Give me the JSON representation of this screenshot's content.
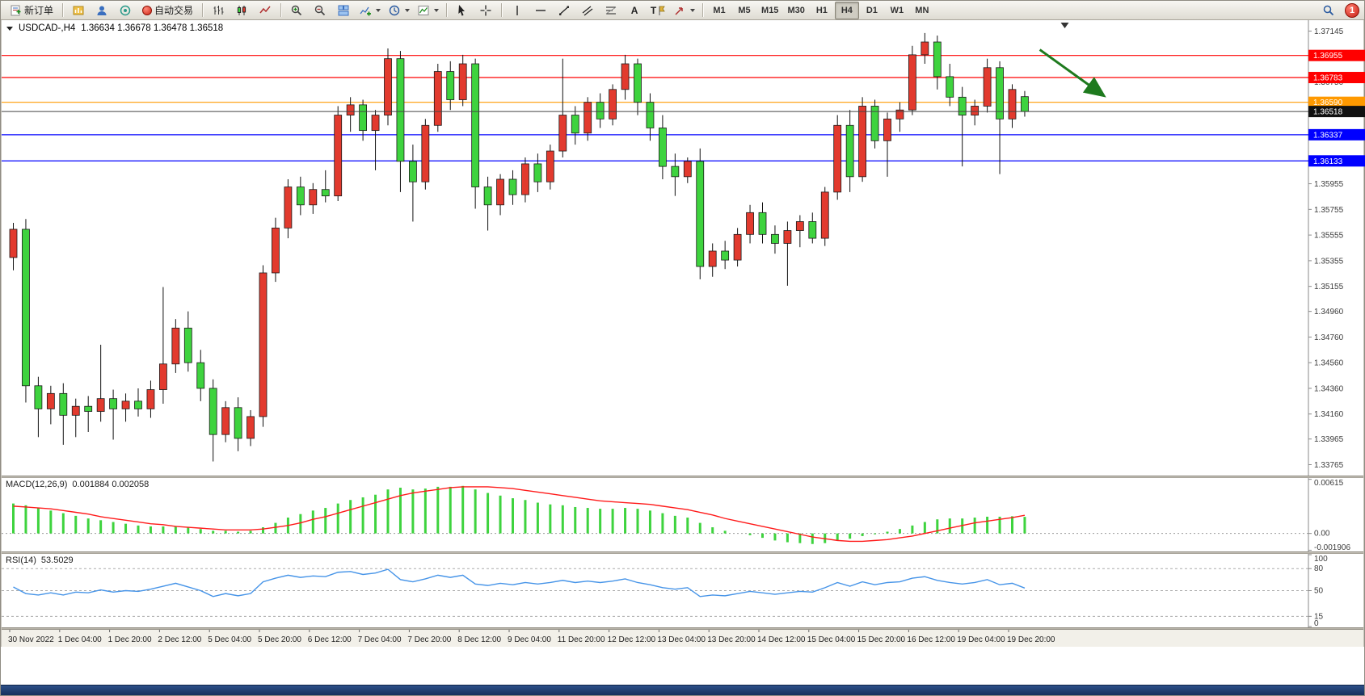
{
  "toolbar": {
    "new_order": "新订单",
    "auto_trading": "自动交易",
    "timeframes": [
      "M1",
      "M5",
      "M15",
      "M30",
      "H1",
      "H4",
      "D1",
      "W1",
      "MN"
    ],
    "active_timeframe": "H4",
    "badge": "1"
  },
  "icons": {
    "text_tool": "A",
    "label_tool": "T"
  },
  "chart_header": {
    "symbol_period": "USDCAD-,H4",
    "quote": "1.36634 1.36678 1.36478 1.36518"
  },
  "colors": {
    "up": "#e23a2e",
    "down": "#3ed33e",
    "wick": "#111111",
    "macd_hist": "#3ed33e",
    "macd_signal": "#ff1a1a",
    "rsi_line": "#4694e8",
    "arrow": "#1e7a1e",
    "axis_text": "#3c3c3c"
  },
  "chart_data": {
    "type": "candlestick",
    "symbol": "USDCAD",
    "period": "H4",
    "last_ohlc": {
      "open": 1.36634,
      "high": 1.36678,
      "low": 1.36478,
      "close": 1.36518
    },
    "price_range": [
      1.3368,
      1.3723
    ],
    "price_ticks": [
      "1.37145",
      "1.36945",
      "1.36750",
      "1.36550",
      "1.36350",
      "1.36155",
      "1.35955",
      "1.35755",
      "1.35555",
      "1.35355",
      "1.35155",
      "1.34960",
      "1.34760",
      "1.34560",
      "1.34360",
      "1.34160",
      "1.33965",
      "1.33765"
    ],
    "hlines": [
      {
        "value": 1.36955,
        "label": "1.36955",
        "color": "#ff0000"
      },
      {
        "value": 1.36783,
        "label": "1.36783",
        "color": "#ff0000"
      },
      {
        "value": 1.3659,
        "label": "1.36590",
        "color": "#ff9900"
      },
      {
        "value": 1.36337,
        "label": "1.36337",
        "color": "#0000ff"
      },
      {
        "value": 1.36133,
        "label": "1.36133",
        "color": "#0000ff"
      }
    ],
    "current_price": {
      "value": 1.36518,
      "label": "1.36518",
      "color": "#111111"
    },
    "arrow": {
      "from_index": 82.5,
      "from_price": 1.37,
      "to_index": 87.5,
      "to_price": 1.3665
    },
    "shift_marker_index": 84.5,
    "time_labels": [
      "30 Nov 2022",
      "1 Dec 04:00",
      "1 Dec 20:00",
      "2 Dec 12:00",
      "5 Dec 04:00",
      "5 Dec 20:00",
      "6 Dec 12:00",
      "7 Dec 04:00",
      "7 Dec 20:00",
      "8 Dec 12:00",
      "9 Dec 04:00",
      "11 Dec 20:00",
      "12 Dec 12:00",
      "13 Dec 04:00",
      "13 Dec 20:00",
      "14 Dec 12:00",
      "15 Dec 04:00",
      "15 Dec 20:00",
      "16 Dec 12:00",
      "19 Dec 04:00",
      "19 Dec 20:00"
    ],
    "candles": [
      [
        1.3538,
        1.3565,
        1.3528,
        1.356
      ],
      [
        1.356,
        1.3568,
        1.3425,
        1.3438
      ],
      [
        1.3438,
        1.3445,
        1.3398,
        1.342
      ],
      [
        1.342,
        1.3438,
        1.3408,
        1.3432
      ],
      [
        1.3432,
        1.344,
        1.3392,
        1.3415
      ],
      [
        1.3415,
        1.3428,
        1.3398,
        1.3422
      ],
      [
        1.3422,
        1.343,
        1.3402,
        1.3418
      ],
      [
        1.3418,
        1.347,
        1.341,
        1.3428
      ],
      [
        1.3428,
        1.3435,
        1.3396,
        1.342
      ],
      [
        1.342,
        1.3432,
        1.341,
        1.3426
      ],
      [
        1.3426,
        1.3436,
        1.3414,
        1.342
      ],
      [
        1.342,
        1.3442,
        1.3413,
        1.3435
      ],
      [
        1.3435,
        1.3515,
        1.3424,
        1.3455
      ],
      [
        1.3455,
        1.349,
        1.3448,
        1.3483
      ],
      [
        1.3483,
        1.3496,
        1.3449,
        1.3456
      ],
      [
        1.3456,
        1.3466,
        1.3426,
        1.3436
      ],
      [
        1.3436,
        1.3443,
        1.3379,
        1.34
      ],
      [
        1.34,
        1.3426,
        1.3394,
        1.3421
      ],
      [
        1.3421,
        1.3429,
        1.3387,
        1.3397
      ],
      [
        1.3397,
        1.3419,
        1.3391,
        1.3414
      ],
      [
        1.3414,
        1.3532,
        1.3406,
        1.3526
      ],
      [
        1.3526,
        1.3569,
        1.3519,
        1.3561
      ],
      [
        1.3561,
        1.3599,
        1.3553,
        1.3593
      ],
      [
        1.3593,
        1.3601,
        1.3571,
        1.3579
      ],
      [
        1.3579,
        1.3596,
        1.3572,
        1.3591
      ],
      [
        1.3591,
        1.3606,
        1.3581,
        1.3586
      ],
      [
        1.3586,
        1.3656,
        1.3582,
        1.3649
      ],
      [
        1.3649,
        1.3663,
        1.3636,
        1.3657
      ],
      [
        1.3657,
        1.3661,
        1.3629,
        1.3637
      ],
      [
        1.3637,
        1.3653,
        1.3606,
        1.3649
      ],
      [
        1.3649,
        1.3701,
        1.3641,
        1.3693
      ],
      [
        1.3693,
        1.3699,
        1.3589,
        1.3613
      ],
      [
        1.3613,
        1.3626,
        1.3566,
        1.3597
      ],
      [
        1.3597,
        1.3646,
        1.3591,
        1.3641
      ],
      [
        1.3641,
        1.3689,
        1.3636,
        1.3683
      ],
      [
        1.3683,
        1.3691,
        1.3653,
        1.3661
      ],
      [
        1.3661,
        1.3696,
        1.3656,
        1.3689
      ],
      [
        1.3689,
        1.3693,
        1.3576,
        1.3593
      ],
      [
        1.3593,
        1.3601,
        1.3559,
        1.3579
      ],
      [
        1.3579,
        1.3603,
        1.3571,
        1.3599
      ],
      [
        1.3599,
        1.3606,
        1.3579,
        1.3587
      ],
      [
        1.3587,
        1.3616,
        1.3581,
        1.3611
      ],
      [
        1.3611,
        1.3619,
        1.3589,
        1.3597
      ],
      [
        1.3597,
        1.3626,
        1.3591,
        1.3621
      ],
      [
        1.3621,
        1.3693,
        1.3616,
        1.3649
      ],
      [
        1.3649,
        1.3656,
        1.3626,
        1.3635
      ],
      [
        1.3635,
        1.3663,
        1.3629,
        1.3659
      ],
      [
        1.3659,
        1.3666,
        1.3639,
        1.3646
      ],
      [
        1.3646,
        1.3673,
        1.3641,
        1.3669
      ],
      [
        1.3669,
        1.3696,
        1.3661,
        1.3689
      ],
      [
        1.3689,
        1.3693,
        1.3649,
        1.3659
      ],
      [
        1.3659,
        1.3666,
        1.3629,
        1.3639
      ],
      [
        1.3639,
        1.3649,
        1.3599,
        1.3609
      ],
      [
        1.3609,
        1.3619,
        1.3586,
        1.3601
      ],
      [
        1.3601,
        1.3616,
        1.3596,
        1.3613
      ],
      [
        1.3613,
        1.3623,
        1.3521,
        1.3531
      ],
      [
        1.3531,
        1.3549,
        1.3523,
        1.3543
      ],
      [
        1.3543,
        1.3551,
        1.3529,
        1.3536
      ],
      [
        1.3536,
        1.3561,
        1.3531,
        1.3556
      ],
      [
        1.3556,
        1.3579,
        1.3549,
        1.3573
      ],
      [
        1.3573,
        1.3581,
        1.3549,
        1.3556
      ],
      [
        1.3556,
        1.3563,
        1.3541,
        1.3549
      ],
      [
        1.3549,
        1.3566,
        1.3516,
        1.3559
      ],
      [
        1.3559,
        1.3571,
        1.3546,
        1.3566
      ],
      [
        1.3566,
        1.3573,
        1.3549,
        1.3553
      ],
      [
        1.3553,
        1.3593,
        1.3547,
        1.3589
      ],
      [
        1.3589,
        1.3649,
        1.3583,
        1.3641
      ],
      [
        1.3641,
        1.3653,
        1.3589,
        1.3601
      ],
      [
        1.3601,
        1.3663,
        1.3597,
        1.3656
      ],
      [
        1.3656,
        1.3661,
        1.3623,
        1.3629
      ],
      [
        1.3629,
        1.3651,
        1.3601,
        1.3646
      ],
      [
        1.3646,
        1.3659,
        1.3636,
        1.3653
      ],
      [
        1.3653,
        1.3703,
        1.3649,
        1.3696
      ],
      [
        1.3696,
        1.3713,
        1.3689,
        1.3706
      ],
      [
        1.3706,
        1.3711,
        1.3669,
        1.3679
      ],
      [
        1.3679,
        1.3689,
        1.3656,
        1.3663
      ],
      [
        1.3663,
        1.3671,
        1.3609,
        1.3649
      ],
      [
        1.3649,
        1.3661,
        1.3641,
        1.3656
      ],
      [
        1.3656,
        1.3693,
        1.3651,
        1.3686
      ],
      [
        1.3686,
        1.3691,
        1.3603,
        1.3646
      ],
      [
        1.3646,
        1.3673,
        1.3639,
        1.3669
      ],
      [
        1.36634,
        1.36678,
        1.36478,
        1.36518
      ]
    ],
    "macd": {
      "label": "MACD(12,26,9)",
      "values_label": "0.001884 0.002058",
      "range": [
        -0.00205,
        0.0063
      ],
      "ticks": [
        {
          "value": 0.00615,
          "label": "0.00615"
        },
        {
          "value": 0,
          "label": "0.00"
        },
        {
          "value": -0.001906,
          "label": "-0.001906"
        }
      ],
      "hist": [
        0.0034,
        0.0032,
        0.0029,
        0.0026,
        0.0023,
        0.002,
        0.0017,
        0.0015,
        0.0013,
        0.0011,
        0.0009,
        0.0008,
        0.0008,
        0.0008,
        0.0007,
        0.0005,
        0.0003,
        0.0003,
        0.0002,
        0.0003,
        0.0007,
        0.0012,
        0.0018,
        0.0022,
        0.0026,
        0.0029,
        0.0034,
        0.0038,
        0.0041,
        0.0044,
        0.005,
        0.0052,
        0.005,
        0.0051,
        0.0053,
        0.0053,
        0.0054,
        0.005,
        0.0046,
        0.0043,
        0.004,
        0.0038,
        0.0035,
        0.0033,
        0.0032,
        0.003,
        0.0029,
        0.0028,
        0.0028,
        0.0029,
        0.0028,
        0.0026,
        0.0023,
        0.002,
        0.0018,
        0.0012,
        0.0007,
        0.0003,
        0.0,
        -0.0002,
        -0.0005,
        -0.0008,
        -0.001,
        -0.0011,
        -0.0012,
        -0.0011,
        -0.0008,
        -0.0006,
        -0.0003,
        -0.0001,
        0.0002,
        0.0005,
        0.0009,
        0.0013,
        0.0016,
        0.0017,
        0.0017,
        0.0018,
        0.0019,
        0.0019,
        0.00195,
        0.001884
      ],
      "signal": [
        0.0031,
        0.003,
        0.0029,
        0.0028,
        0.0026,
        0.0024,
        0.0022,
        0.0019,
        0.0017,
        0.0015,
        0.0013,
        0.0011,
        0.001,
        0.0008,
        0.0007,
        0.0006,
        0.0005,
        0.0004,
        0.0004,
        0.0004,
        0.0005,
        0.0007,
        0.0009,
        0.0012,
        0.0016,
        0.0019,
        0.0023,
        0.0027,
        0.0031,
        0.0035,
        0.0039,
        0.0043,
        0.0046,
        0.0048,
        0.005,
        0.0052,
        0.0053,
        0.0053,
        0.0053,
        0.0052,
        0.0051,
        0.0049,
        0.0047,
        0.0045,
        0.0043,
        0.0041,
        0.0039,
        0.0037,
        0.0036,
        0.0035,
        0.0034,
        0.0033,
        0.0031,
        0.0029,
        0.0027,
        0.0024,
        0.0021,
        0.0017,
        0.0014,
        0.0011,
        0.0008,
        0.0005,
        0.0002,
        -0.0001,
        -0.0004,
        -0.0006,
        -0.0008,
        -0.0009,
        -0.0009,
        -0.0008,
        -0.0007,
        -0.0005,
        -0.0003,
        0.0,
        0.0003,
        0.0006,
        0.0009,
        0.0012,
        0.0014,
        0.0016,
        0.0018,
        0.002058
      ]
    },
    "rsi": {
      "label": "RSI(14)",
      "value_label": "53.5029",
      "range": [
        0,
        100
      ],
      "ticks": [
        {
          "value": 100,
          "label": "100"
        },
        {
          "value": 80,
          "label": "80"
        },
        {
          "value": 50,
          "label": "50"
        },
        {
          "value": 15,
          "label": "15"
        },
        {
          "value": 0,
          "label": "0"
        }
      ],
      "levels": [
        80,
        50,
        15
      ],
      "values": [
        55,
        46,
        44,
        47,
        44,
        48,
        47,
        51,
        48,
        50,
        49,
        52,
        56,
        60,
        55,
        50,
        42,
        46,
        43,
        46,
        62,
        67,
        71,
        68,
        70,
        69,
        75,
        76,
        72,
        74,
        79,
        65,
        62,
        66,
        71,
        68,
        71,
        59,
        57,
        60,
        58,
        61,
        59,
        61,
        64,
        61,
        63,
        61,
        63,
        66,
        61,
        58,
        54,
        52,
        54,
        42,
        44,
        43,
        46,
        49,
        47,
        45,
        47,
        49,
        48,
        54,
        61,
        56,
        62,
        58,
        61,
        62,
        67,
        69,
        64,
        61,
        59,
        61,
        65,
        58,
        60,
        53.5
      ]
    }
  }
}
